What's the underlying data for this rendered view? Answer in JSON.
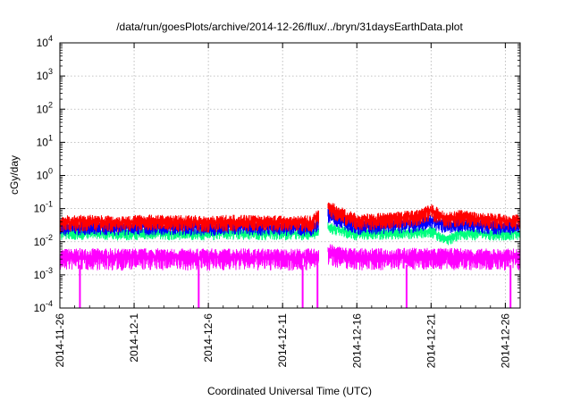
{
  "chart_data": {
    "type": "line",
    "title": "/data/run/goesPlots/archive/2014-12-26/flux/../bryn/31daysEarthData.plot",
    "xlabel": "Coordinated Universal Time (UTC)",
    "ylabel": "cGy/day",
    "y_scale": "log",
    "ylim": [
      0.0001,
      10000
    ],
    "xlim": [
      "2014-11-26",
      "2014-12-27"
    ],
    "x_ticks": [
      "2014-11-26",
      "2014-12-1",
      "2014-12-6",
      "2014-12-11",
      "2014-12-16",
      "2014-12-21",
      "2014-12-26"
    ],
    "y_ticks": [
      {
        "base": "10",
        "exp": "-4"
      },
      {
        "base": "10",
        "exp": "-3"
      },
      {
        "base": "10",
        "exp": "-2"
      },
      {
        "base": "10",
        "exp": "-1"
      },
      {
        "base": "10",
        "exp": "0"
      },
      {
        "base": "10",
        "exp": "1"
      },
      {
        "base": "10",
        "exp": "2"
      },
      {
        "base": "10",
        "exp": "3"
      },
      {
        "base": "10",
        "exp": "4"
      }
    ],
    "grid": true,
    "data_gap": [
      "2014-12-13",
      "2014-12-14"
    ],
    "series": [
      {
        "color": "#ff0000",
        "points": [
          [
            "2014-11-26",
            0.04
          ],
          [
            "2014-11-28",
            0.042
          ],
          [
            "2014-11-30",
            0.04
          ],
          [
            "2014-12-2",
            0.043
          ],
          [
            "2014-12-4",
            0.041
          ],
          [
            "2014-12-6",
            0.04
          ],
          [
            "2014-12-8",
            0.042
          ],
          [
            "2014-12-10",
            0.041
          ],
          [
            "2014-12-12",
            0.04
          ],
          [
            "2014-12-13",
            0.04
          ],
          [
            "2014-12-14",
            0.12
          ],
          [
            "2014-12-15",
            0.07
          ],
          [
            "2014-12-16",
            0.045
          ],
          [
            "2014-12-18",
            0.048
          ],
          [
            "2014-12-20",
            0.06
          ],
          [
            "2014-12-21",
            0.09
          ],
          [
            "2014-12-22",
            0.05
          ],
          [
            "2014-12-23",
            0.06
          ],
          [
            "2014-12-24",
            0.05
          ],
          [
            "2014-12-26",
            0.045
          ],
          [
            "2014-12-27",
            0.045
          ]
        ]
      },
      {
        "color": "#0000ff",
        "points": [
          [
            "2014-11-26",
            0.028
          ],
          [
            "2014-11-28",
            0.03
          ],
          [
            "2014-11-30",
            0.029
          ],
          [
            "2014-12-2",
            0.03
          ],
          [
            "2014-12-4",
            0.029
          ],
          [
            "2014-12-6",
            0.028
          ],
          [
            "2014-12-8",
            0.03
          ],
          [
            "2014-12-10",
            0.029
          ],
          [
            "2014-12-12",
            0.028
          ],
          [
            "2014-12-13",
            0.028
          ],
          [
            "2014-12-14",
            0.07
          ],
          [
            "2014-12-15",
            0.045
          ],
          [
            "2014-12-16",
            0.03
          ],
          [
            "2014-12-18",
            0.032
          ],
          [
            "2014-12-20",
            0.035
          ],
          [
            "2014-12-21",
            0.045
          ],
          [
            "2014-12-22",
            0.033
          ],
          [
            "2014-12-23",
            0.035
          ],
          [
            "2014-12-24",
            0.032
          ],
          [
            "2014-12-26",
            0.03
          ],
          [
            "2014-12-27",
            0.03
          ]
        ]
      },
      {
        "color": "#00ff7f",
        "points": [
          [
            "2014-11-26",
            0.018
          ],
          [
            "2014-11-28",
            0.019
          ],
          [
            "2014-11-30",
            0.018
          ],
          [
            "2014-12-2",
            0.019
          ],
          [
            "2014-12-4",
            0.018
          ],
          [
            "2014-12-6",
            0.018
          ],
          [
            "2014-12-8",
            0.019
          ],
          [
            "2014-12-10",
            0.018
          ],
          [
            "2014-12-12",
            0.018
          ],
          [
            "2014-12-13",
            0.018
          ],
          [
            "2014-12-14",
            0.03
          ],
          [
            "2014-12-15",
            0.022
          ],
          [
            "2014-12-16",
            0.018
          ],
          [
            "2014-12-18",
            0.019
          ],
          [
            "2014-12-20",
            0.02
          ],
          [
            "2014-12-21",
            0.022
          ],
          [
            "2014-12-22",
            0.012
          ],
          [
            "2014-12-23",
            0.018
          ],
          [
            "2014-12-24",
            0.018
          ],
          [
            "2014-12-26",
            0.018
          ],
          [
            "2014-12-27",
            0.018
          ]
        ]
      },
      {
        "color": "#ff00ff",
        "points": [
          [
            "2014-11-26",
            0.0035
          ],
          [
            "2014-11-28",
            0.0036
          ],
          [
            "2014-11-30",
            0.0035
          ],
          [
            "2014-12-2",
            0.0036
          ],
          [
            "2014-12-4",
            0.0035
          ],
          [
            "2014-12-6",
            0.0035
          ],
          [
            "2014-12-8",
            0.0036
          ],
          [
            "2014-12-10",
            0.0035
          ],
          [
            "2014-12-12",
            0.0035
          ],
          [
            "2014-12-13",
            0.0035
          ],
          [
            "2014-12-14",
            0.005
          ],
          [
            "2014-12-15",
            0.004
          ],
          [
            "2014-12-16",
            0.0036
          ],
          [
            "2014-12-18",
            0.0036
          ],
          [
            "2014-12-20",
            0.0037
          ],
          [
            "2014-12-21",
            0.0038
          ],
          [
            "2014-12-22",
            0.0036
          ],
          [
            "2014-12-23",
            0.0036
          ],
          [
            "2014-12-24",
            0.0035
          ],
          [
            "2014-12-26",
            0.0035
          ],
          [
            "2014-12-27",
            0.0035
          ]
        ]
      }
    ],
    "dropouts": [
      "2014-11-27",
      "2014-12-5",
      "2014-12-12",
      "2014-12-13",
      "2014-12-19",
      "2014-12-26"
    ]
  }
}
